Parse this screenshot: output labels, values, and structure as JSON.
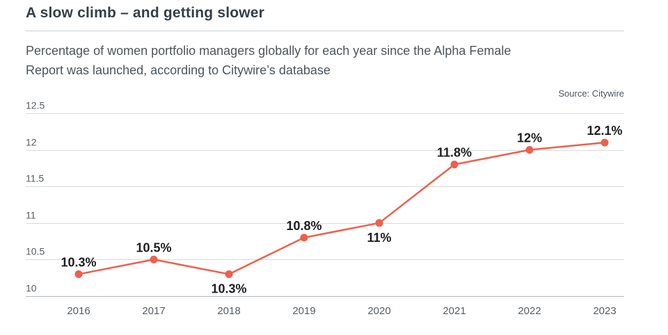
{
  "header": {
    "title": "A slow climb – and getting slower",
    "subtitle_lines": [
      "Percentage of women portfolio managers globally for each year since the Alpha Female",
      "Report was launched, according to Citywire’s database"
    ],
    "source": "Source: Citywire"
  },
  "chart_data": {
    "type": "line",
    "title": "A slow climb – and getting slower",
    "xlabel": "",
    "ylabel": "",
    "categories": [
      "2016",
      "2017",
      "2018",
      "2019",
      "2020",
      "2021",
      "2022",
      "2023"
    ],
    "values": [
      10.3,
      10.5,
      10.3,
      10.8,
      11.0,
      11.8,
      12.0,
      12.1
    ],
    "data_labels": [
      "10.3%",
      "10.5%",
      "10.3%",
      "10.8%",
      "11%",
      "11.8%",
      "12%",
      "12.1%"
    ],
    "label_positions": [
      "above",
      "above",
      "below",
      "above",
      "below",
      "above",
      "above",
      "above"
    ],
    "y_ticks": [
      10,
      10.5,
      11,
      11.5,
      12,
      12.5
    ],
    "y_tick_labels": [
      "10",
      "10.5",
      "11",
      "11.5",
      "12",
      "12.5"
    ],
    "ylim": [
      10,
      12.5
    ],
    "grid": true,
    "legend": "none",
    "line_color": "#ee5f4c",
    "marker_color": "#ee5f4c",
    "data_label_color": "#1d1e1f"
  }
}
